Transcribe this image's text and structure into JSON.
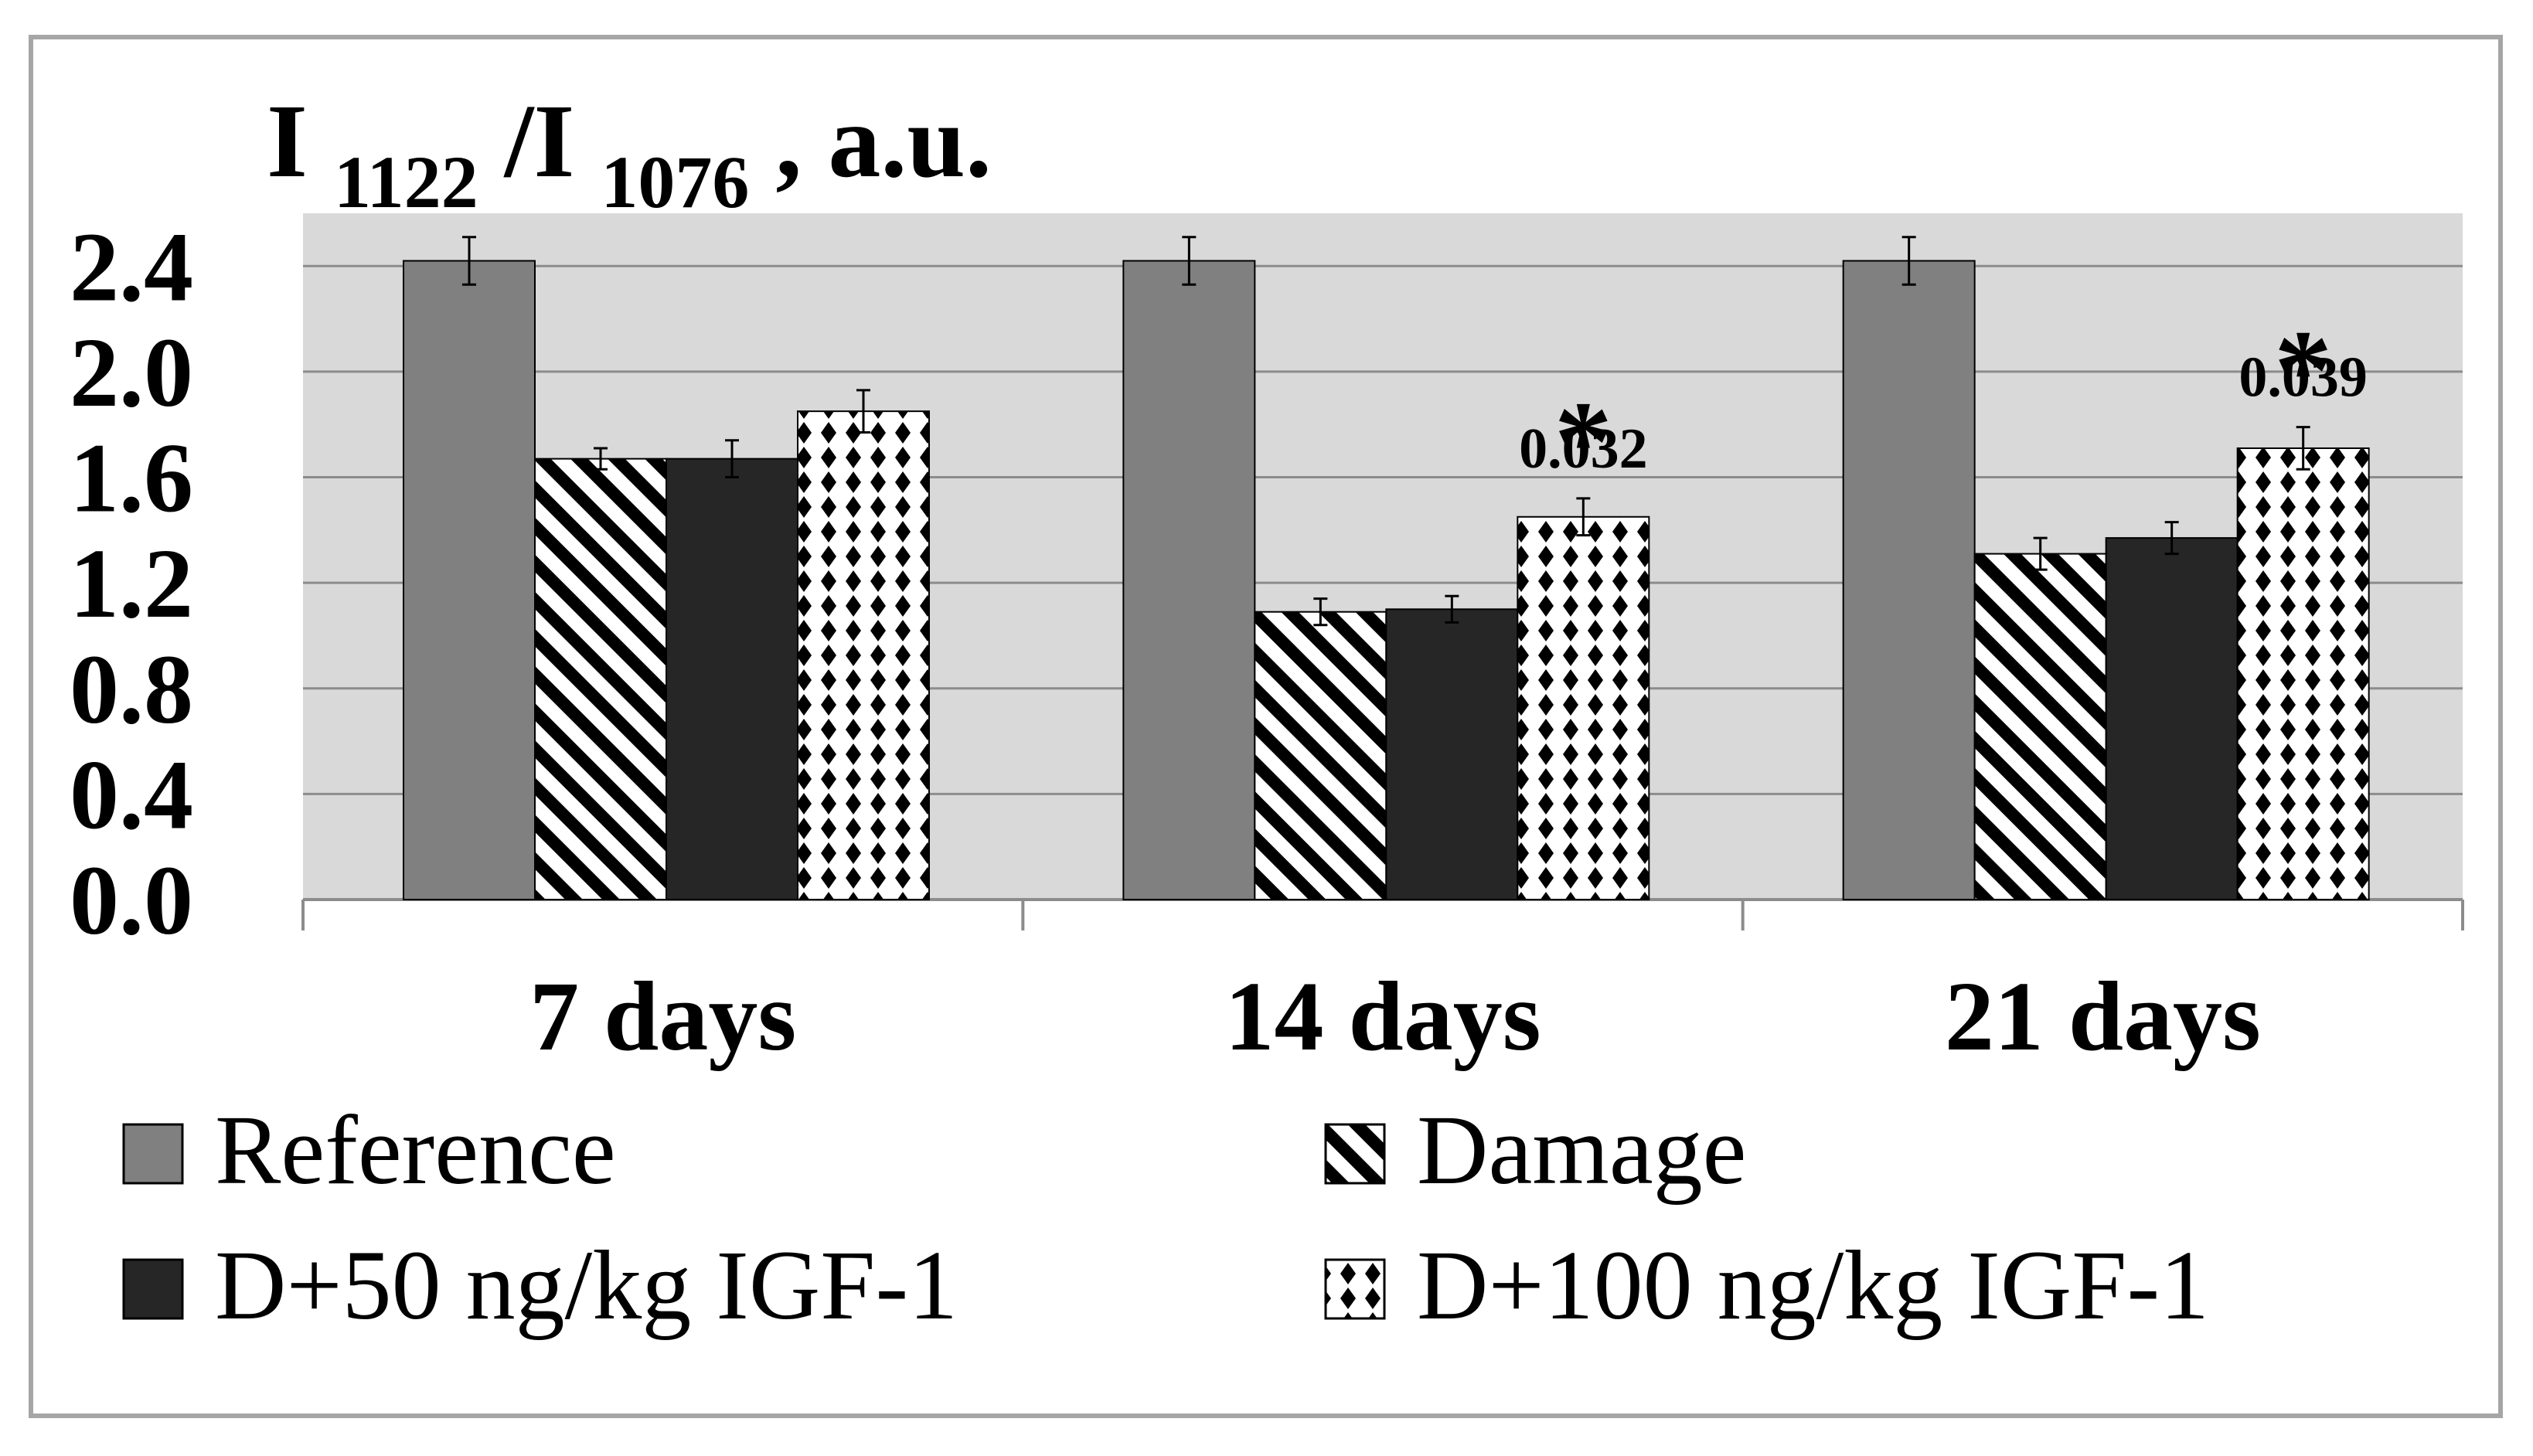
{
  "chart_data": {
    "type": "bar",
    "title": "",
    "ylabel": {
      "prefix": "I",
      "sub1": "1122",
      "sep": "/I",
      "sub2": "1076",
      "suffix": ", a.u."
    },
    "xlabel": "",
    "ylim": [
      0,
      2.6
    ],
    "yticks": [
      "0.0",
      "0.4",
      "0.8",
      "1.2",
      "1.6",
      "2.0",
      "2.4"
    ],
    "ytick_values": [
      0,
      0.4,
      0.8,
      1.2,
      1.6,
      2.0,
      2.4
    ],
    "grid": true,
    "categories": [
      "7 days",
      "14 days",
      "21 days"
    ],
    "series": [
      {
        "name": "Reference",
        "fill": "#808080",
        "pattern": "solid",
        "values": [
          2.42,
          2.42,
          2.42
        ],
        "errors": [
          0.09,
          0.09,
          0.09
        ]
      },
      {
        "name": "Damage",
        "fill": "#ffffff",
        "pattern": "diagonal",
        "values": [
          1.67,
          1.09,
          1.31
        ],
        "errors": [
          0.04,
          0.05,
          0.06
        ]
      },
      {
        "name": "D+50 ng/kg IGF-1",
        "fill": "#262626",
        "pattern": "solid",
        "values": [
          1.67,
          1.1,
          1.37
        ],
        "errors": [
          0.07,
          0.05,
          0.06
        ]
      },
      {
        "name": "D+100 ng/kg IGF-1",
        "fill": "#ffffff",
        "pattern": "checker",
        "values": [
          1.85,
          1.45,
          1.71
        ],
        "errors": [
          0.08,
          0.07,
          0.08
        ]
      }
    ],
    "annotations": [
      {
        "category_index": 1,
        "series_index": 3,
        "marker": "*",
        "label": "0.032"
      },
      {
        "category_index": 2,
        "series_index": 3,
        "marker": "*",
        "label": "0.039"
      }
    ],
    "legend": {
      "placement": "bottom",
      "columns": 2
    }
  },
  "colors": {
    "plot_background": "#d9d9d9",
    "gridline": "#8c8c8c",
    "frame": "#a6a6a6"
  }
}
